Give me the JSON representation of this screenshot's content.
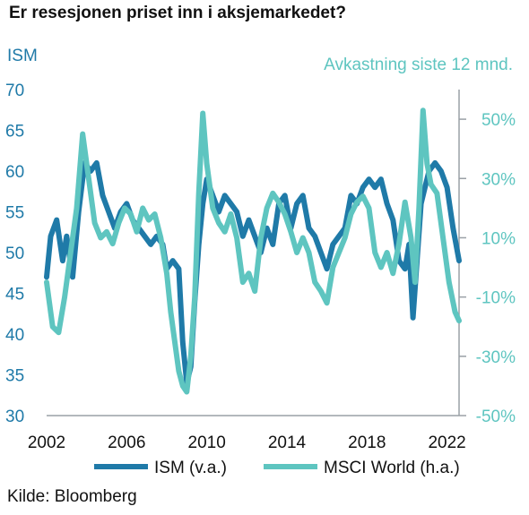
{
  "title": "Er resesjonen priset inn i aksjemarkedet?",
  "source": "Kilde: Bloomberg",
  "colors": {
    "ism": "#1f7aa8",
    "msci": "#5ec5c0",
    "axis": "#9aa0a6"
  },
  "chart_data": {
    "type": "line",
    "ylabel_left": "ISM",
    "ylabel_right": "Avkastning siste 12 mnd.",
    "xlim": [
      2002,
      2022.6
    ],
    "ylim_left": [
      30,
      70
    ],
    "ylim_right": [
      -50,
      60
    ],
    "x_ticks": [
      "2002",
      "2006",
      "2010",
      "2014",
      "2018",
      "2022"
    ],
    "y_ticks_left": [
      "30",
      "35",
      "40",
      "45",
      "50",
      "55",
      "60",
      "65",
      "70"
    ],
    "y_ticks_right": [
      "-50%",
      "-30%",
      "-10%",
      "10%",
      "30%",
      "50%"
    ],
    "legend": [
      "ISM (v.a.)",
      "MSCI World (h.a.)"
    ],
    "grid": false,
    "series": [
      {
        "name": "ISM (v.a.)",
        "axis": "left",
        "x": [
          2002.0,
          2002.2,
          2002.5,
          2002.8,
          2003.0,
          2003.3,
          2003.6,
          2003.9,
          2004.2,
          2004.5,
          2004.8,
          2005.1,
          2005.4,
          2005.7,
          2006.0,
          2006.3,
          2006.6,
          2006.9,
          2007.2,
          2007.5,
          2007.8,
          2008.0,
          2008.3,
          2008.6,
          2008.8,
          2009.0,
          2009.2,
          2009.4,
          2009.6,
          2009.8,
          2010.0,
          2010.3,
          2010.6,
          2010.9,
          2011.2,
          2011.5,
          2011.8,
          2012.1,
          2012.4,
          2012.7,
          2013.0,
          2013.3,
          2013.6,
          2013.9,
          2014.2,
          2014.5,
          2014.8,
          2015.1,
          2015.4,
          2015.7,
          2016.0,
          2016.3,
          2016.6,
          2016.9,
          2017.2,
          2017.5,
          2017.8,
          2018.1,
          2018.4,
          2018.7,
          2019.0,
          2019.3,
          2019.6,
          2019.9,
          2020.1,
          2020.3,
          2020.5,
          2020.7,
          2020.9,
          2021.1,
          2021.4,
          2021.7,
          2022.0,
          2022.3,
          2022.6
        ],
        "y": [
          47,
          52,
          54,
          49,
          52,
          47,
          55,
          61,
          60,
          61,
          57,
          55,
          53,
          55,
          56,
          54,
          53,
          52,
          51,
          52,
          51,
          48,
          49,
          48,
          39,
          34,
          36,
          44,
          51,
          56,
          59,
          57,
          55,
          57,
          56,
          55,
          52,
          54,
          52,
          50,
          53,
          51,
          56,
          57,
          53,
          56,
          57,
          53,
          52,
          50,
          48,
          51,
          52,
          53,
          57,
          56,
          58,
          59,
          58,
          59,
          56,
          54,
          49,
          48,
          51,
          42,
          49,
          56,
          58,
          60,
          61,
          60,
          58,
          53,
          49
        ]
      },
      {
        "name": "MSCI World (h.a.)",
        "axis": "right",
        "x": [
          2002.0,
          2002.3,
          2002.6,
          2002.9,
          2003.2,
          2003.5,
          2003.8,
          2004.1,
          2004.4,
          2004.7,
          2005.0,
          2005.3,
          2005.6,
          2005.9,
          2006.2,
          2006.5,
          2006.8,
          2007.1,
          2007.4,
          2007.7,
          2008.0,
          2008.2,
          2008.4,
          2008.6,
          2008.8,
          2009.0,
          2009.2,
          2009.4,
          2009.6,
          2009.8,
          2010.0,
          2010.3,
          2010.6,
          2010.9,
          2011.2,
          2011.5,
          2011.8,
          2012.1,
          2012.4,
          2012.7,
          2013.0,
          2013.3,
          2013.6,
          2013.9,
          2014.2,
          2014.5,
          2014.8,
          2015.1,
          2015.4,
          2015.7,
          2016.0,
          2016.3,
          2016.6,
          2016.9,
          2017.2,
          2017.5,
          2017.8,
          2018.1,
          2018.4,
          2018.7,
          2019.0,
          2019.3,
          2019.6,
          2019.9,
          2020.2,
          2020.4,
          2020.6,
          2020.8,
          2021.0,
          2021.2,
          2021.5,
          2021.8,
          2022.1,
          2022.4,
          2022.6
        ],
        "y": [
          -5,
          -20,
          -22,
          -10,
          5,
          20,
          45,
          30,
          15,
          10,
          12,
          8,
          15,
          20,
          18,
          12,
          20,
          16,
          18,
          10,
          -2,
          -15,
          -25,
          -35,
          -40,
          -42,
          -30,
          -10,
          25,
          52,
          35,
          20,
          15,
          12,
          18,
          10,
          -5,
          -2,
          -8,
          10,
          20,
          25,
          22,
          18,
          12,
          5,
          10,
          5,
          -5,
          -8,
          -12,
          0,
          5,
          10,
          18,
          22,
          24,
          20,
          5,
          0,
          5,
          -2,
          8,
          22,
          10,
          -5,
          20,
          53,
          35,
          28,
          25,
          10,
          -5,
          -15,
          -18
        ]
      }
    ]
  }
}
